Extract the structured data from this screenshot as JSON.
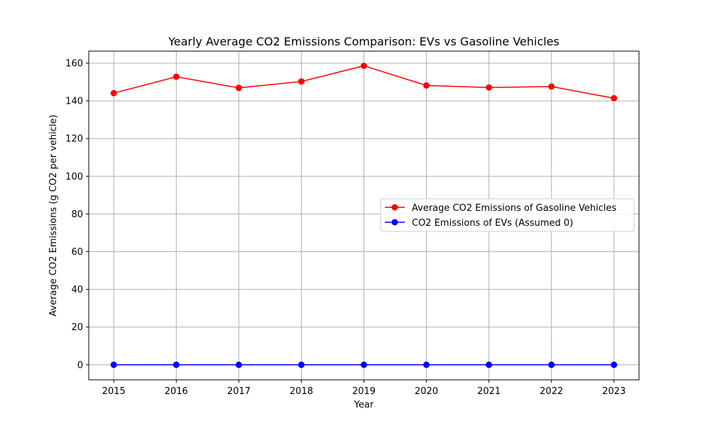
{
  "chart_data": {
    "type": "line",
    "title": "Yearly Average CO2 Emissions Comparison: EVs vs Gasoline Vehicles",
    "xlabel": "Year",
    "ylabel": "Average CO2 Emissions (g CO2 per vehicle)",
    "x": [
      2015,
      2016,
      2017,
      2018,
      2019,
      2020,
      2021,
      2022,
      2023
    ],
    "x_tick_labels": [
      "2015",
      "2016",
      "2017",
      "2018",
      "2019",
      "2020",
      "2021",
      "2022",
      "2023"
    ],
    "y_ticks": [
      0,
      20,
      40,
      60,
      80,
      100,
      120,
      140,
      160
    ],
    "y_tick_labels": [
      "0",
      "20",
      "40",
      "60",
      "80",
      "100",
      "120",
      "140",
      "160"
    ],
    "xlim": [
      2014.6,
      2023.4
    ],
    "ylim": [
      -8.0,
      166.4
    ],
    "grid": true,
    "legend_position": "center-right",
    "series": [
      {
        "name": "Average CO2 Emissions of Gasoline Vehicles",
        "color": "#ff0000",
        "marker": "circle",
        "values": [
          144.1,
          152.8,
          146.9,
          150.3,
          158.6,
          148.2,
          147.1,
          147.6,
          141.4
        ]
      },
      {
        "name": "CO2 Emissions of EVs (Assumed 0)",
        "color": "#0000ff",
        "marker": "circle",
        "values": [
          0,
          0,
          0,
          0,
          0,
          0,
          0,
          0,
          0
        ]
      }
    ]
  }
}
